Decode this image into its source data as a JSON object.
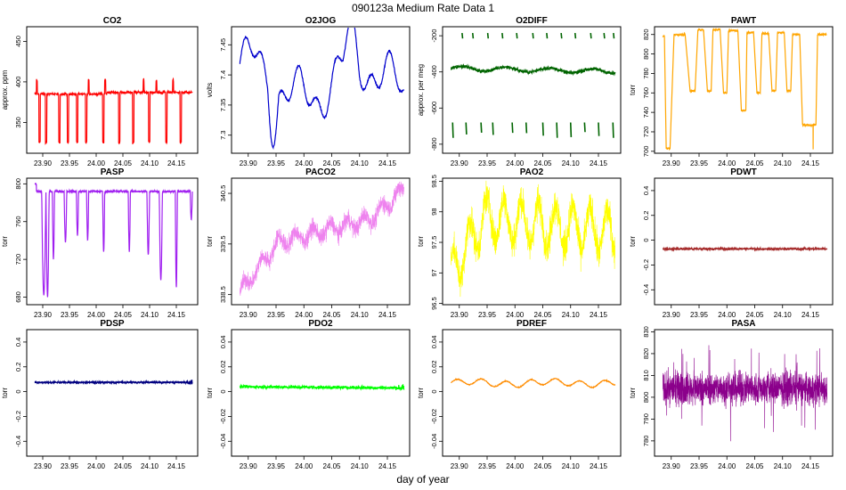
{
  "title": "090123a   Medium Rate Data 1",
  "xlabel": "day of year",
  "chart_data": [
    {
      "type": "line",
      "name": "CO2",
      "title": "CO2",
      "ylabel": "approx. ppm",
      "color": "#ff0000",
      "xlim": [
        23.87,
        24.19
      ],
      "ylim": [
        312,
        468
      ],
      "yticks": [
        350,
        400,
        450
      ],
      "xticks": [
        23.9,
        23.95,
        24.0,
        24.05,
        24.1,
        24.15
      ],
      "xtick_labels": [
        "23.90",
        "23.95",
        "24.00",
        "24.05",
        "24.10",
        "24.15"
      ],
      "shape": "co2"
    },
    {
      "type": "line",
      "name": "O2JOG",
      "title": "O2JOG",
      "ylabel": "volts",
      "color": "#0000cd",
      "xlim": [
        23.87,
        24.19
      ],
      "ylim": [
        7.27,
        7.48
      ],
      "yticks": [
        7.3,
        7.35,
        7.4,
        7.45
      ],
      "xticks": [
        23.9,
        23.95,
        24.0,
        24.05,
        24.1,
        24.15
      ],
      "xtick_labels": [
        "23.90",
        "23.95",
        "24.00",
        "24.05",
        "24.10",
        "24.15"
      ],
      "shape": "o2jog"
    },
    {
      "type": "line",
      "name": "O2DIFF",
      "title": "O2DIFF",
      "ylabel": "approx. per meg",
      "color": "#006400",
      "xlim": [
        23.87,
        24.19
      ],
      "ylim": [
        -850,
        -150
      ],
      "yticks": [
        -800,
        -600,
        -400,
        -200
      ],
      "xticks": [
        23.9,
        23.95,
        24.0,
        24.05,
        24.1,
        24.15
      ],
      "xtick_labels": [
        "23.90",
        "23.95",
        "24.00",
        "24.05",
        "24.10",
        "24.15"
      ],
      "shape": "o2diff"
    },
    {
      "type": "line",
      "name": "PAWT",
      "title": "PAWT",
      "ylabel": "torr",
      "color": "#ffa500",
      "xlim": [
        23.87,
        24.19
      ],
      "ylim": [
        698,
        828
      ],
      "yticks": [
        700,
        720,
        740,
        760,
        780,
        800,
        820
      ],
      "xticks": [
        23.9,
        23.95,
        24.0,
        24.05,
        24.1,
        24.15
      ],
      "xtick_labels": [
        "23.90",
        "23.95",
        "24.00",
        "24.05",
        "24.10",
        "24.15"
      ],
      "shape": "pawt"
    },
    {
      "type": "line",
      "name": "PASP",
      "title": "PASP",
      "ylabel": "torr",
      "color": "#a020f0",
      "xlim": [
        23.87,
        24.19
      ],
      "ylim": [
        672,
        806
      ],
      "yticks": [
        680,
        720,
        760,
        800
      ],
      "xticks": [
        23.9,
        23.95,
        24.0,
        24.05,
        24.1,
        24.15
      ],
      "xtick_labels": [
        "23.90",
        "23.95",
        "24.00",
        "24.05",
        "24.10",
        "24.15"
      ],
      "shape": "pasp"
    },
    {
      "type": "line",
      "name": "PACO2",
      "title": "PACO2",
      "ylabel": "torr",
      "color": "#ee82ee",
      "xlim": [
        23.87,
        24.19
      ],
      "ylim": [
        338.3,
        340.8
      ],
      "yticks": [
        338.5,
        339.5,
        340.5
      ],
      "xticks": [
        23.9,
        23.95,
        24.0,
        24.05,
        24.1,
        24.15
      ],
      "xtick_labels": [
        "23.90",
        "23.95",
        "24.00",
        "24.05",
        "24.10",
        "24.15"
      ],
      "shape": "paco2"
    },
    {
      "type": "line",
      "name": "PAO2",
      "title": "PAO2",
      "ylabel": "torr",
      "color": "#ffff00",
      "xlim": [
        23.87,
        24.19
      ],
      "ylim": [
        96.48,
        98.55
      ],
      "yticks": [
        96.5,
        97.0,
        97.5,
        98.0,
        98.5
      ],
      "xticks": [
        23.9,
        23.95,
        24.0,
        24.05,
        24.1,
        24.15
      ],
      "xtick_labels": [
        "23.90",
        "23.95",
        "24.00",
        "24.05",
        "24.10",
        "24.15"
      ],
      "shape": "pao2"
    },
    {
      "type": "line",
      "name": "PDWT",
      "title": "PDWT",
      "ylabel": "torr",
      "color": "#a52a2a",
      "xlim": [
        23.87,
        24.19
      ],
      "ylim": [
        -0.52,
        0.5
      ],
      "yticks": [
        -0.4,
        -0.2,
        0.0,
        0.2,
        0.4
      ],
      "xticks": [
        23.9,
        23.95,
        24.0,
        24.05,
        24.1,
        24.15
      ],
      "xtick_labels": [
        "23.90",
        "23.95",
        "24.00",
        "24.05",
        "24.10",
        "24.15"
      ],
      "shape": "pdwt"
    },
    {
      "type": "line",
      "name": "PDSP",
      "title": "PDSP",
      "ylabel": "torr",
      "color": "#000080",
      "xlim": [
        23.87,
        24.19
      ],
      "ylim": [
        -0.52,
        0.5
      ],
      "yticks": [
        -0.4,
        -0.2,
        0.0,
        0.2,
        0.4
      ],
      "xticks": [
        23.9,
        23.95,
        24.0,
        24.05,
        24.1,
        24.15
      ],
      "xtick_labels": [
        "23.90",
        "23.95",
        "24.00",
        "24.05",
        "24.10",
        "24.15"
      ],
      "shape": "pdsp"
    },
    {
      "type": "line",
      "name": "PDO2",
      "title": "PDO2",
      "ylabel": "torr",
      "color": "#00ff00",
      "xlim": [
        23.87,
        24.19
      ],
      "ylim": [
        -0.052,
        0.05
      ],
      "yticks": [
        -0.04,
        -0.02,
        0.0,
        0.02,
        0.04
      ],
      "xticks": [
        23.9,
        23.95,
        24.0,
        24.05,
        24.1,
        24.15
      ],
      "xtick_labels": [
        "23.90",
        "23.95",
        "24.00",
        "24.05",
        "24.10",
        "24.15"
      ],
      "shape": "pdo2"
    },
    {
      "type": "line",
      "name": "PDREF",
      "title": "PDREF",
      "ylabel": "torr",
      "color": "#ff8c00",
      "xlim": [
        23.87,
        24.19
      ],
      "ylim": [
        -0.052,
        0.05
      ],
      "yticks": [
        -0.04,
        -0.02,
        0.0,
        0.02,
        0.04
      ],
      "xticks": [
        23.9,
        23.95,
        24.0,
        24.05,
        24.1,
        24.15
      ],
      "xtick_labels": [
        "23.90",
        "23.95",
        "24.00",
        "24.05",
        "24.10",
        "24.15"
      ],
      "shape": "pdref"
    },
    {
      "type": "line",
      "name": "PASA",
      "title": "PASA",
      "ylabel": "torr",
      "color": "#8b008b",
      "xlim": [
        23.87,
        24.19
      ],
      "ylim": [
        773,
        831
      ],
      "yticks": [
        780,
        790,
        800,
        810,
        820,
        830
      ],
      "xticks": [
        23.9,
        23.95,
        24.0,
        24.05,
        24.1,
        24.15
      ],
      "xtick_labels": [
        "23.90",
        "23.95",
        "24.00",
        "24.05",
        "24.10",
        "24.15"
      ],
      "shape": "pasa"
    }
  ]
}
